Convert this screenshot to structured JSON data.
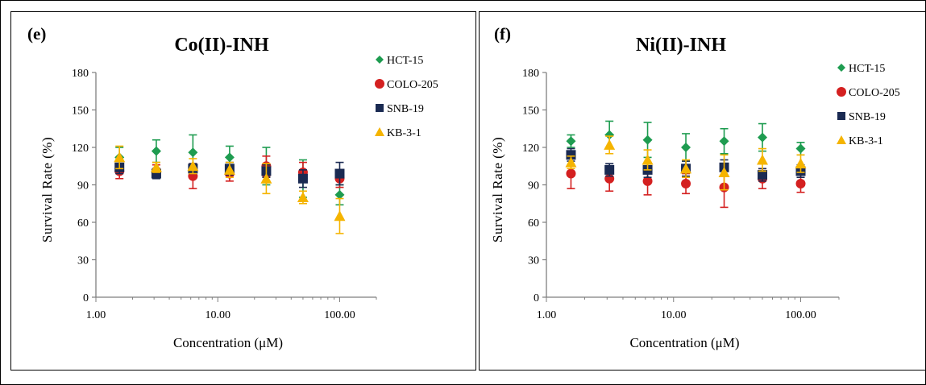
{
  "colors": {
    "HCT-15": "#1e9c50",
    "COLO-205": "#d42020",
    "SNB-19": "#1a2a52",
    "KB-3-1": "#f5b400",
    "axis": "#7f7f7f"
  },
  "chart_data": [
    {
      "type": "scatter",
      "panel_label": "(e)",
      "title": "Co(II)-INH",
      "xlabel": "Concentration (μM)",
      "ylabel": "Survival Rate (%)",
      "xscale": "log",
      "xlim": [
        1,
        200
      ],
      "ylim": [
        0,
        180
      ],
      "xticks": [
        1,
        10,
        100
      ],
      "xtick_labels": [
        "1.00",
        "10.00",
        "100.00"
      ],
      "yticks": [
        0,
        30,
        60,
        90,
        120,
        150,
        180
      ],
      "ytick_labels": [
        "0",
        "30",
        "60",
        "90",
        "120",
        "150",
        "180"
      ],
      "legend_position": "right",
      "grid": false,
      "x": [
        1.56,
        3.13,
        6.25,
        12.5,
        25,
        50,
        100
      ],
      "series": [
        {
          "name": "HCT-15",
          "marker": "diamond",
          "y": [
            112,
            117,
            116,
            112,
            105,
            95,
            82
          ],
          "err": [
            8,
            9,
            14,
            9,
            15,
            15,
            8
          ]
        },
        {
          "name": "COLO-205",
          "marker": "circle",
          "y": [
            101,
            101,
            97,
            99,
            105,
            100,
            95
          ],
          "err": [
            6,
            5,
            10,
            6,
            8,
            8,
            7
          ]
        },
        {
          "name": "SNB-19",
          "marker": "square",
          "y": [
            104,
            99,
            103,
            103,
            101,
            95,
            99
          ],
          "err": [
            5,
            4,
            4,
            5,
            5,
            7,
            9
          ]
        },
        {
          "name": "KB-3-1",
          "marker": "triangle",
          "y": [
            112,
            104,
            105,
            102,
            95,
            80,
            65
          ],
          "err": [
            9,
            4,
            6,
            6,
            12,
            5,
            14
          ]
        }
      ]
    },
    {
      "type": "scatter",
      "panel_label": "(f)",
      "title": "Ni(II)-INH",
      "xlabel": "Concentration (μM)",
      "ylabel": "Survival Rate (%)",
      "xscale": "log",
      "xlim": [
        1,
        200
      ],
      "ylim": [
        0,
        180
      ],
      "xticks": [
        1,
        10,
        100
      ],
      "xtick_labels": [
        "1.00",
        "10.00",
        "100.00"
      ],
      "yticks": [
        0,
        30,
        60,
        90,
        120,
        150,
        180
      ],
      "ytick_labels": [
        "0",
        "30",
        "60",
        "90",
        "120",
        "150",
        "180"
      ],
      "legend_position": "right",
      "grid": false,
      "x": [
        1.56,
        3.13,
        6.25,
        12.5,
        25,
        50,
        100
      ],
      "series": [
        {
          "name": "HCT-15",
          "marker": "diamond",
          "y": [
            125,
            130,
            126,
            120,
            125,
            128,
            119
          ],
          "err": [
            5,
            11,
            14,
            11,
            10,
            11,
            5
          ]
        },
        {
          "name": "COLO-205",
          "marker": "circle",
          "y": [
            99,
            95,
            93,
            91,
            88,
            95,
            91
          ],
          "err": [
            12,
            10,
            11,
            8,
            16,
            8,
            7
          ]
        },
        {
          "name": "SNB-19",
          "marker": "square",
          "y": [
            114,
            102,
            102,
            103,
            104,
            98,
            101
          ],
          "err": [
            5,
            5,
            6,
            6,
            6,
            5,
            5
          ]
        },
        {
          "name": "KB-3-1",
          "marker": "triangle",
          "y": [
            108,
            122,
            110,
            103,
            100,
            110,
            107
          ],
          "err": [
            5,
            7,
            8,
            7,
            14,
            9,
            7
          ]
        }
      ]
    }
  ]
}
